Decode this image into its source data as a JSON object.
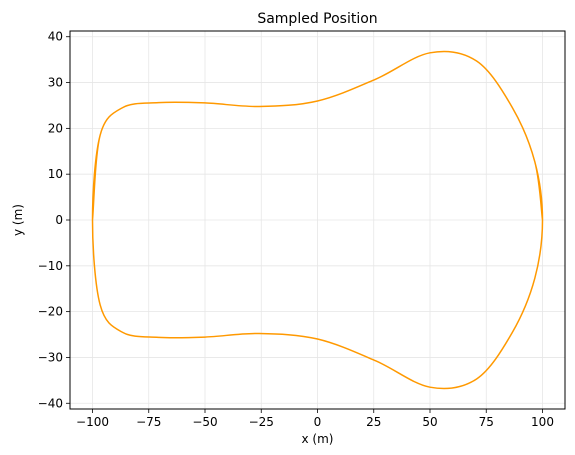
{
  "chart_data": {
    "type": "line",
    "title": "Sampled Position",
    "xlabel": "x (m)",
    "ylabel": "y (m)",
    "xlim": [
      -110,
      110
    ],
    "ylim": [
      -41.25,
      41.25
    ],
    "xticks": [
      -100,
      -75,
      -50,
      -25,
      0,
      25,
      50,
      75,
      100
    ],
    "xtick_labels": [
      "−100",
      "−75",
      "−50",
      "−25",
      "0",
      "25",
      "50",
      "75",
      "100"
    ],
    "yticks": [
      -40,
      -30,
      -20,
      -10,
      0,
      10,
      20,
      30,
      40
    ],
    "ytick_labels": [
      "−40",
      "−30",
      "−20",
      "−10",
      "0",
      "10",
      "20",
      "30",
      "40"
    ],
    "grid": true,
    "series": [
      {
        "color": "#ff9900",
        "points": [
          [
            100.0,
            0.0
          ],
          [
            96.59,
            12.7
          ],
          [
            86.6,
            24.53
          ],
          [
            70.71,
            34.69
          ],
          [
            50.0,
            36.49
          ],
          [
            25.88,
            30.74
          ],
          [
            0.0,
            25.98
          ],
          [
            -25.88,
            24.78
          ],
          [
            -50.0,
            25.55
          ],
          [
            -70.71,
            25.61
          ],
          [
            -86.6,
            24.53
          ],
          [
            -96.59,
            18.55
          ],
          [
            -100.0,
            0.0
          ],
          [
            -96.59,
            -18.55
          ],
          [
            -86.6,
            -24.53
          ],
          [
            -70.71,
            -25.61
          ],
          [
            -50.0,
            -25.55
          ],
          [
            -25.88,
            -24.78
          ],
          [
            0.0,
            -25.98
          ],
          [
            25.88,
            -30.74
          ],
          [
            50.0,
            -36.49
          ],
          [
            70.71,
            -34.69
          ],
          [
            86.6,
            -24.53
          ],
          [
            96.59,
            -12.7
          ],
          [
            100.0,
            0.0
          ],
          [
            96.59,
            12.7
          ],
          [
            86.6,
            24.53
          ],
          [
            70.71,
            34.69
          ],
          [
            50.0,
            36.49
          ],
          [
            25.88,
            30.74
          ],
          [
            0.0,
            25.98
          ],
          [
            -25.88,
            24.78
          ],
          [
            -50.0,
            25.55
          ],
          [
            -70.71,
            25.61
          ],
          [
            -86.6,
            24.53
          ],
          [
            -96.59,
            18.55
          ],
          [
            -100.0,
            0.0
          ]
        ]
      }
    ]
  }
}
